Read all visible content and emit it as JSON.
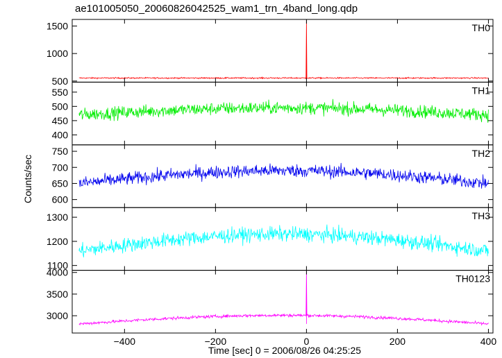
{
  "title": "ae101005050_20060826042525_wam1_trn_4band_long.qdp",
  "ylabel": "Counts/sec",
  "xlabel": "Time [sec] 0 = 2006/08/26 04:25:25",
  "chart_data": {
    "type": "line",
    "title": "ae101005050_20060826042525_wam1_trn_4band_long.qdp",
    "xlabel": "Time [sec] 0 = 2006/08/26 04:25:25",
    "ylabel": "Counts/sec",
    "xlim": [
      -515,
      410
    ],
    "x_ticks": [
      -400,
      -200,
      0,
      200,
      400
    ],
    "x_range": [
      -500,
      400
    ],
    "legend": "none",
    "grid": false,
    "panels": [
      {
        "name": "TH0",
        "color": "#ff0000",
        "ylim": [
          480,
          1620
        ],
        "yticks": [
          500,
          1000,
          1500
        ],
        "base": 555,
        "noise": 12,
        "arch": 0,
        "spike": {
          "x": 0,
          "y": 1610
        }
      },
      {
        "name": "TH1",
        "color": "#00ee00",
        "ylim": [
          365,
          585
        ],
        "yticks": [
          400,
          450,
          500,
          550
        ],
        "base": 470,
        "noise": 22,
        "arch": 25,
        "spike": null
      },
      {
        "name": "TH2",
        "color": "#0000ee",
        "ylim": [
          575,
          770
        ],
        "yticks": [
          600,
          650,
          700,
          750
        ],
        "base": 650,
        "noise": 20,
        "arch": 40,
        "spike": null
      },
      {
        "name": "TH3",
        "color": "#00ffff",
        "ylim": [
          1080,
          1340
        ],
        "yticks": [
          1100,
          1200,
          1300
        ],
        "base": 1160,
        "noise": 30,
        "arch": 70,
        "spike": null
      },
      {
        "name": "TH0123",
        "color": "#ff00ff",
        "ylim": [
          2600,
          4050
        ],
        "yticks": [
          3000,
          3500,
          4000
        ],
        "base": 2810,
        "noise": 35,
        "arch": 200,
        "spike": {
          "x": 0,
          "y": 4020
        }
      }
    ]
  }
}
